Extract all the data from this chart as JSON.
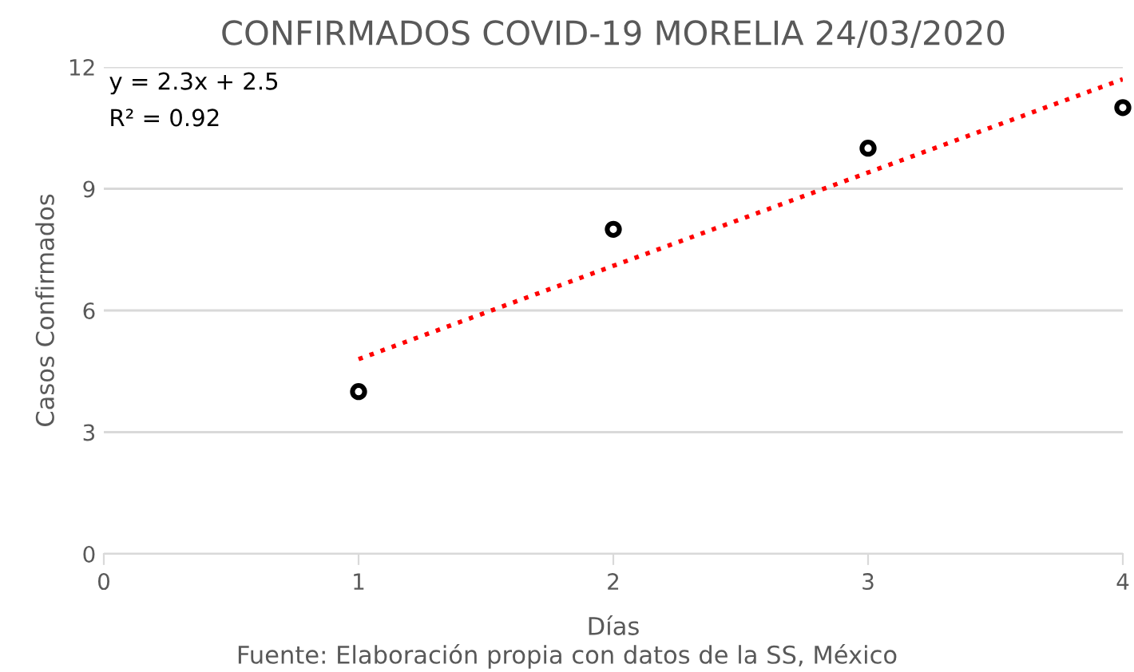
{
  "chart_data": {
    "type": "scatter",
    "title": "CONFIRMADOS COVID-19 MORELIA 24/03/2020",
    "xlabel": "Días",
    "ylabel": "Casos Confirmados",
    "x": [
      1,
      2,
      3,
      4
    ],
    "series": [
      {
        "color": "#000000",
        "marker": "circle",
        "values": [
          4,
          8,
          10,
          11
        ]
      },
      {
        "type": "line",
        "color": "#ff0000",
        "line_style": "dotted",
        "x": [
          1,
          4
        ],
        "values": [
          4.8,
          11.7
        ]
      }
    ],
    "xlim": [
      0,
      4
    ],
    "xticks": [
      0,
      1,
      2,
      3,
      4
    ],
    "ylim": [
      0,
      12
    ],
    "yticks": [
      0,
      3,
      6,
      9,
      12
    ],
    "grid": "y",
    "annotations": [
      "y = 2.3x + 2.5",
      "R² = 0.92",
      "Fuente: Elaboración propia con datos de la SS, México"
    ]
  }
}
